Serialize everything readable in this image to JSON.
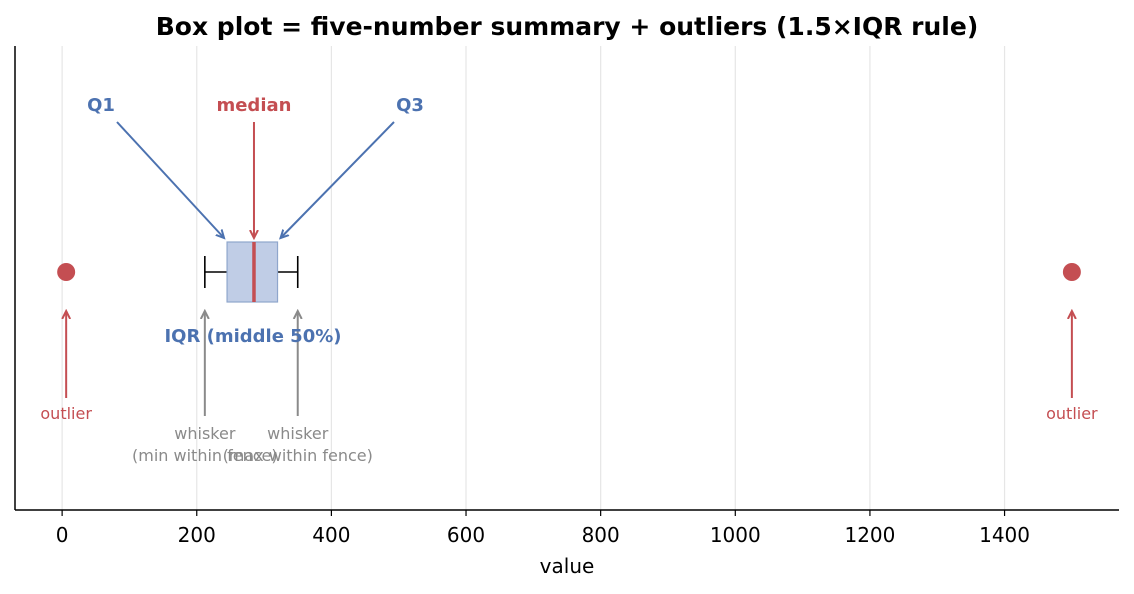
{
  "colors": {
    "blue": "#4c72b0",
    "red": "#c44e52",
    "box_fill": "#c0cde6",
    "box_edge": "#8fa6cc",
    "gray": "#8a8a8a",
    "grid": "#e6e6e6"
  },
  "chart_data": {
    "type": "box",
    "title": "Box plot = five-number summary + outliers (1.5×IQR rule)",
    "xlabel": "value",
    "xlim": [
      -70,
      1570
    ],
    "x_ticks": [
      0,
      200,
      400,
      600,
      800,
      1000,
      1200,
      1400
    ],
    "x_tick_labels": [
      "0",
      "200",
      "400",
      "600",
      "800",
      "1000",
      "1200",
      "1400"
    ],
    "grid": "x",
    "box": {
      "whisker_low": 212,
      "q1": 245,
      "median": 285,
      "q3": 320,
      "whisker_high": 350
    },
    "outliers": [
      6,
      1500
    ],
    "annotations": {
      "q1": "Q1",
      "median": "median",
      "q3": "Q3",
      "iqr": "IQR (middle 50%)",
      "outlier_left": "outlier",
      "outlier_right": "outlier",
      "whisker_low_line1": "whisker",
      "whisker_low_line2": "(min within fence)",
      "whisker_high_line1": "whisker",
      "whisker_high_line2": "(max within fence)"
    }
  }
}
